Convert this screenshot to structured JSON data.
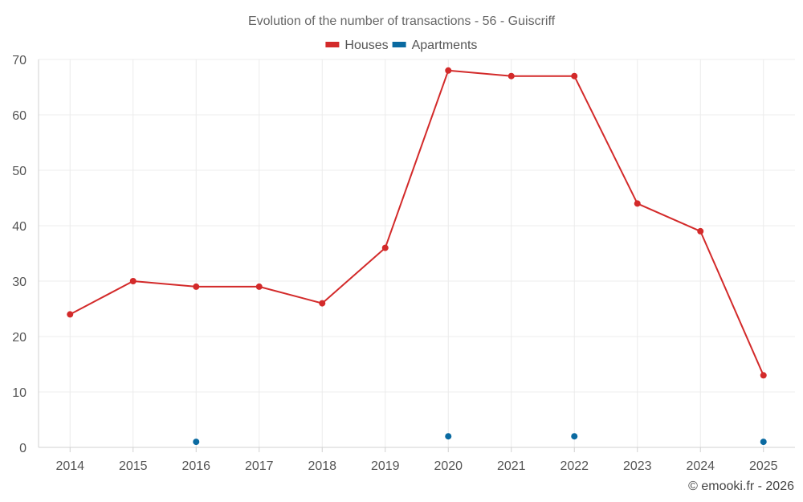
{
  "chart_data": {
    "type": "line",
    "title": "Evolution of the number of transactions - 56 - Guiscriff",
    "categories": [
      "2014",
      "2015",
      "2016",
      "2017",
      "2018",
      "2019",
      "2020",
      "2021",
      "2022",
      "2023",
      "2024",
      "2025"
    ],
    "ylim": [
      0,
      70
    ],
    "yticks": [
      0,
      10,
      20,
      30,
      40,
      50,
      60,
      70
    ],
    "grid": true,
    "legend_position": "top-center",
    "series": [
      {
        "name": "Houses",
        "color": "#d32a2a",
        "show_line": true,
        "points": [
          {
            "x": "2014",
            "y": 24
          },
          {
            "x": "2015",
            "y": 30
          },
          {
            "x": "2016",
            "y": 29
          },
          {
            "x": "2017",
            "y": 29
          },
          {
            "x": "2018",
            "y": 26
          },
          {
            "x": "2019",
            "y": 36
          },
          {
            "x": "2020",
            "y": 68
          },
          {
            "x": "2021",
            "y": 67
          },
          {
            "x": "2022",
            "y": 67
          },
          {
            "x": "2023",
            "y": 44
          },
          {
            "x": "2024",
            "y": 39
          },
          {
            "x": "2025",
            "y": 13
          }
        ]
      },
      {
        "name": "Apartments",
        "color": "#0a6aa1",
        "show_line": false,
        "points": [
          {
            "x": "2016",
            "y": 1
          },
          {
            "x": "2020",
            "y": 2
          },
          {
            "x": "2022",
            "y": 2
          },
          {
            "x": "2025",
            "y": 1
          }
        ]
      }
    ]
  },
  "footer": "© emooki.fr - 2026"
}
